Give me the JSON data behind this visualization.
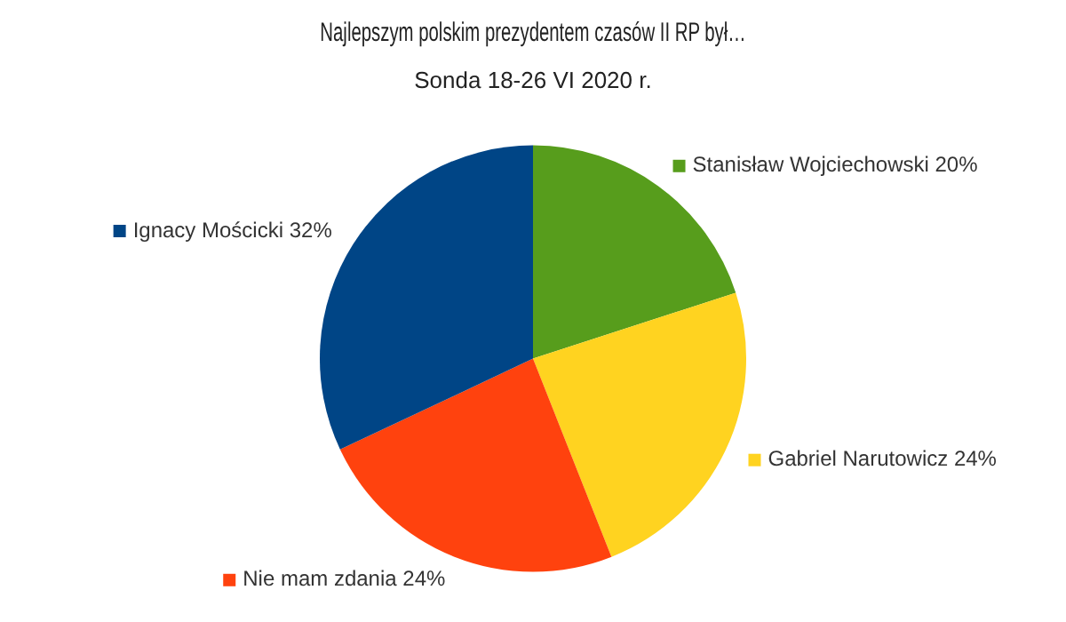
{
  "chart_data": {
    "type": "pie",
    "title": "Najlepszym polskim prezydentem czasów II RP był…",
    "subtitle": "Sonda 18-26 VI 2020 r.",
    "categories": [
      "Stanisław Wojciechowski",
      "Gabriel Narutowicz",
      "Nie mam zdania",
      "Ignacy Mościcki"
    ],
    "values": [
      20,
      24,
      24,
      32
    ],
    "value_labels": [
      "20%",
      "24%",
      "24%",
      "32%"
    ],
    "colors": [
      "#579d1c",
      "#ffd320",
      "#ff420e",
      "#004586"
    ],
    "legend": "right"
  }
}
